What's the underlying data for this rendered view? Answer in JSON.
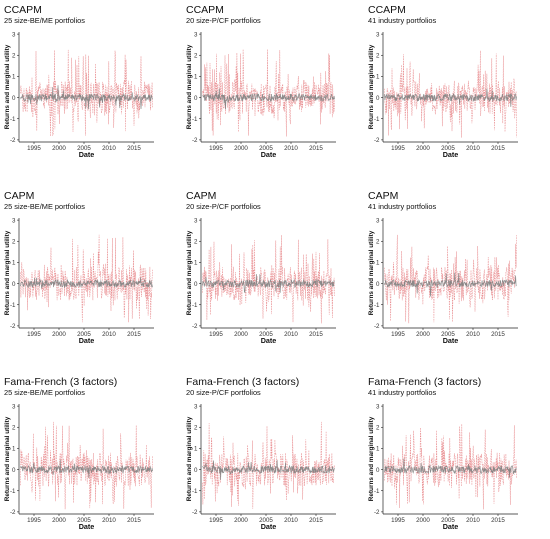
{
  "panels": [
    {
      "title": "CCAPM",
      "subtitle": "25 size-BE/ME portfolios"
    },
    {
      "title": "CCAPM",
      "subtitle": "20 size-P/CF portfolios"
    },
    {
      "title": "CCAPM",
      "subtitle": "41 industry portfolios"
    },
    {
      "title": "CAPM",
      "subtitle": "25 size-BE/ME portfolios"
    },
    {
      "title": "CAPM",
      "subtitle": "20 size-P/CF portfolios"
    },
    {
      "title": "CAPM",
      "subtitle": "41 industry portfolios"
    },
    {
      "title": "Fama-French (3 factors)",
      "subtitle": "25 size-BE/ME portfolios"
    },
    {
      "title": "Fama-French (3 factors)",
      "subtitle": "20 size-P/CF portfolios"
    },
    {
      "title": "Fama-French (3 factors)",
      "subtitle": "41 industry portfolios"
    }
  ],
  "chart_data": {
    "type": "line",
    "xlabel": "Date",
    "ylabel": "Returns and marginal utility",
    "xlim": [
      1992,
      2019
    ],
    "ylim": [
      -2.1,
      3.1
    ],
    "x_ticks": [
      "1995",
      "2000",
      "2005",
      "2010",
      "2015"
    ],
    "y_ticks": [
      "-2",
      "-1",
      "0",
      "1",
      "2",
      "3"
    ],
    "colors": {
      "returns": "#e8898c",
      "marginal_utility": "#808080"
    }
  }
}
